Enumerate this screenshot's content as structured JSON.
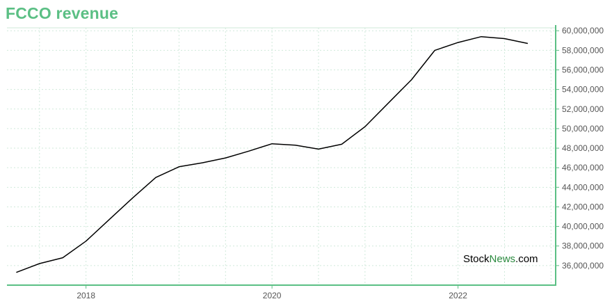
{
  "title": "FCCO revenue",
  "colors": {
    "title": "#5bbf84",
    "axis": "#5bbf84",
    "grid": "#cfe9da",
    "line": "#000000",
    "tick_text": "#555555",
    "watermark_accent": "#2a8a3e"
  },
  "watermark": {
    "part1": "Stock",
    "part2": "News",
    "part3": ".com"
  },
  "chart_data": {
    "type": "line",
    "title": "FCCO revenue",
    "xlabel": "",
    "ylabel": "",
    "xlim": [
      2017.15,
      2023.05
    ],
    "ylim": [
      34000000,
      60300000
    ],
    "x_ticks": [
      2018,
      2020,
      2022
    ],
    "x_tick_labels": [
      "2018",
      "2020",
      "2022"
    ],
    "y_ticks": [
      36000000,
      38000000,
      40000000,
      42000000,
      44000000,
      46000000,
      48000000,
      50000000,
      52000000,
      54000000,
      56000000,
      58000000,
      60000000
    ],
    "y_tick_labels": [
      "36,000,000",
      "38,000,000",
      "40,000,000",
      "42,000,000",
      "44,000,000",
      "46,000,000",
      "48,000,000",
      "50,000,000",
      "52,000,000",
      "54,000,000",
      "56,000,000",
      "58,000,000",
      "60,000,000"
    ],
    "y_axis_side": "right",
    "grid": true,
    "legend": "none",
    "series": [
      {
        "x": [
          2017.25,
          2017.5,
          2017.75,
          2018.0,
          2018.25,
          2018.5,
          2018.75,
          2019.0,
          2019.25,
          2019.5,
          2019.75,
          2020.0,
          2020.25,
          2020.5,
          2020.75,
          2021.0,
          2021.25,
          2021.5,
          2021.75,
          2022.0,
          2022.25,
          2022.5,
          2022.75
        ],
        "y": [
          35300000,
          36200000,
          36800000,
          38500000,
          40700000,
          42900000,
          45000000,
          46100000,
          46500000,
          47000000,
          47700000,
          48450000,
          48300000,
          47900000,
          48400000,
          50200000,
          52600000,
          55000000,
          58000000,
          58800000,
          59400000,
          59200000,
          58700000
        ]
      }
    ]
  }
}
